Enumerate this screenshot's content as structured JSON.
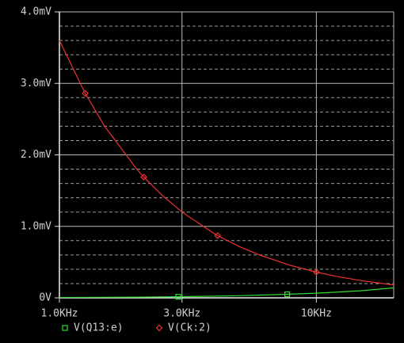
{
  "chart_data": {
    "type": "line",
    "xscale": "log",
    "xlim": [
      1000,
      20000
    ],
    "ylim": [
      0,
      4
    ],
    "xticks": [
      {
        "value": 1000,
        "label": "1.0KHz"
      },
      {
        "value": 3000,
        "label": "3.0KHz"
      },
      {
        "value": 10000,
        "label": "10KHz"
      }
    ],
    "yticks": [
      {
        "value": 0,
        "label": "0V"
      },
      {
        "value": 1,
        "label": "1.0mV"
      },
      {
        "value": 2,
        "label": "2.0mV"
      },
      {
        "value": 3,
        "label": "3.0mV"
      },
      {
        "value": 4,
        "label": "4.0mV"
      }
    ],
    "y_minor_grid": [
      0.2,
      0.4,
      0.6,
      0.8,
      1.2,
      1.4,
      1.6,
      1.8,
      2.2,
      2.4,
      2.6,
      2.8,
      3.2,
      3.4,
      3.6,
      3.8
    ],
    "grid": true,
    "series": [
      {
        "name": "V(Q13:e)",
        "color": "#33dd33",
        "marker": "square",
        "x": [
          1000,
          2000,
          2900,
          5000,
          7700,
          10000,
          15000,
          20000
        ],
        "values": [
          0.005,
          0.01,
          0.015,
          0.03,
          0.05,
          0.065,
          0.1,
          0.14
        ]
      },
      {
        "name": "V(Ck:2)",
        "color": "#ee3333",
        "marker": "diamond",
        "x": [
          1000,
          1260,
          1500,
          2000,
          2130,
          2500,
          3000,
          4000,
          4130,
          5000,
          6000,
          8000,
          10000,
          12000,
          15000,
          20000
        ],
        "values": [
          3.6,
          2.86,
          2.4,
          1.8,
          1.69,
          1.44,
          1.2,
          0.9,
          0.87,
          0.72,
          0.6,
          0.45,
          0.36,
          0.3,
          0.24,
          0.18
        ]
      }
    ]
  }
}
